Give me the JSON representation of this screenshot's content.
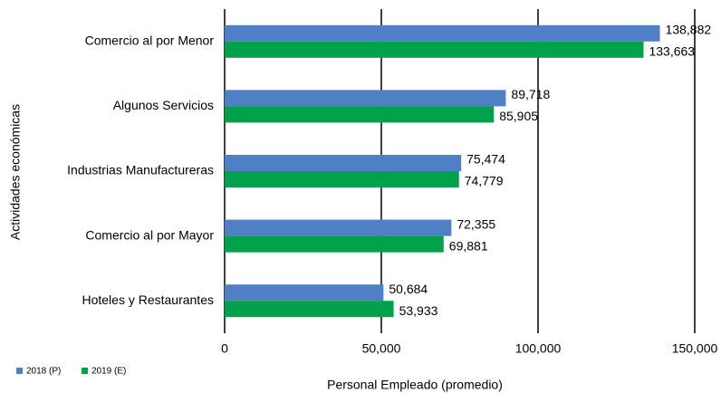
{
  "chart_data": {
    "type": "bar",
    "orientation": "horizontal",
    "categories": [
      "Comercio al por Menor",
      "Algunos Servicios",
      "Industrias Manufactureras",
      "Comercio al por Mayor",
      "Hoteles y Restaurantes"
    ],
    "series": [
      {
        "name": "2018 (P)",
        "color": "#4f7fc4",
        "values": [
          138882,
          89718,
          75474,
          72355,
          50684
        ],
        "value_labels": [
          "138,882",
          "89,718",
          "75,474",
          "72,355",
          "50,684"
        ]
      },
      {
        "name": "2019 (E)",
        "color": "#00a14b",
        "values": [
          133663,
          85905,
          74779,
          69881,
          53933
        ],
        "value_labels": [
          "133,663",
          "85,905",
          "74,779",
          "69,881",
          "53,933"
        ]
      }
    ],
    "xlim": [
      0,
      150000
    ],
    "xticks": [
      0,
      {
        "value": 50000,
        "label": "50,000"
      },
      {
        "value": 100000,
        "label": "100,000"
      },
      {
        "value": 150000,
        "label": "150,000"
      }
    ],
    "x_label": "Personal Empleado  (promedio)",
    "y_label": "Actividades económicas",
    "grid": true,
    "legend": "bottom-left"
  }
}
